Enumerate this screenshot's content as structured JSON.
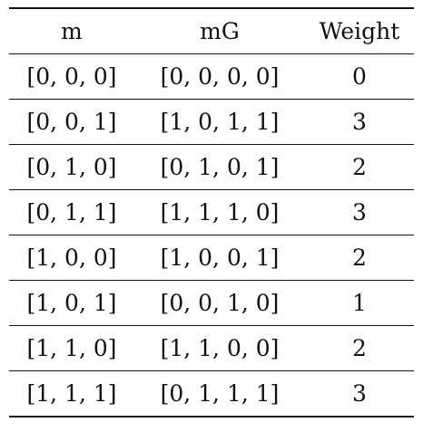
{
  "table": {
    "headers": [
      "m",
      "mG",
      "Weight"
    ],
    "rows": [
      [
        "[0, 0, 0]",
        "[0, 0, 0, 0]",
        "0"
      ],
      [
        "[0, 0, 1]",
        "[1, 0, 1, 1]",
        "3"
      ],
      [
        "[0, 1, 0]",
        "[0, 1, 0, 1]",
        "2"
      ],
      [
        "[0, 1, 1]",
        "[1, 1, 1, 0]",
        "3"
      ],
      [
        "[1, 0, 0]",
        "[1, 0, 0, 1]",
        "2"
      ],
      [
        "[1, 0, 1]",
        "[0, 0, 1, 0]",
        "1"
      ],
      [
        "[1, 1, 0]",
        "[1, 1, 0, 0]",
        "2"
      ],
      [
        "[1, 1, 1]",
        "[0, 1, 1, 1]",
        "3"
      ]
    ]
  }
}
